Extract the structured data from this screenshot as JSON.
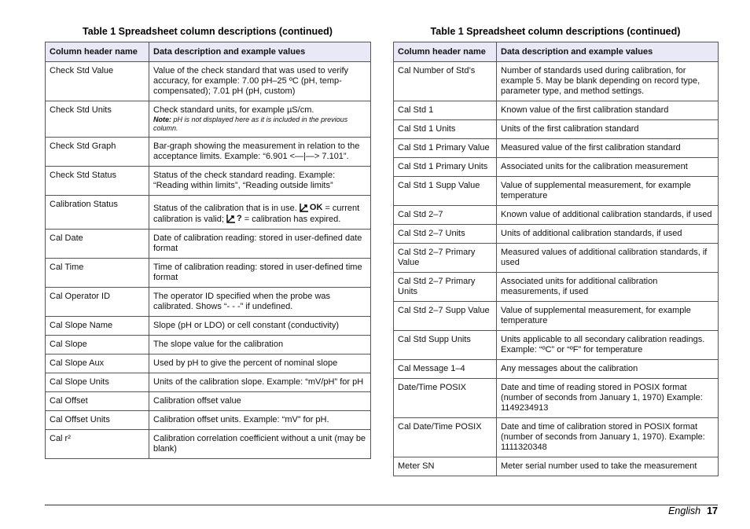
{
  "tables": [
    {
      "title": "Table 1  Spreadsheet column descriptions (continued)",
      "headers": [
        "Column header name",
        "Data description and example values"
      ],
      "rows": [
        [
          "Check Std Value",
          "Value of the check standard that was used to verify accuracy, for example: 7.00 pH–25 ºC (pH, temp-compensated); 7.01 pH (pH, custom)"
        ],
        [
          "Check Std Units",
          {
            "text": "Check standard units, for example µS/cm.",
            "note_label": "Note:",
            "note": "pH is not displayed here as it is included in the previous column."
          }
        ],
        [
          "Check Std Graph",
          "Bar-graph showing the measurement in relation to the acceptance limits. Example: “6.901 <—|—> 7.101”."
        ],
        [
          "Check Std Status",
          "Status of the check standard reading. Example: “Reading within limits”, “Reading outside limits”"
        ],
        [
          "Calibration Status",
          {
            "text": "Status of the calibration that is in use.",
            "ok_icon": "OK",
            "ok_text": "= current calibration is valid;",
            "expired_icon": "?",
            "expired_text": "= calibration has expired."
          }
        ],
        [
          "Cal Date",
          "Date of calibration reading: stored in user-defined date format"
        ],
        [
          "Cal Time",
          "Time of calibration reading: stored in user-defined time format"
        ],
        [
          "Cal Operator ID",
          "The operator ID specified when the probe was calibrated. Shows “- - -” if undefined."
        ],
        [
          "Cal Slope Name",
          "Slope (pH or LDO) or cell constant (conductivity)"
        ],
        [
          "Cal Slope",
          "The slope value for the calibration"
        ],
        [
          "Cal Slope Aux",
          "Used by pH to give the percent of nominal slope"
        ],
        [
          "Cal Slope Units",
          "Units of the calibration slope. Example: “mV/pH” for pH"
        ],
        [
          "Cal Offset",
          "Calibration offset value"
        ],
        [
          "Cal Offset Units",
          "Calibration offset units. Example: “mV” for pH."
        ],
        [
          "Cal r²",
          "Calibration correlation coefficient without a unit (may be blank)"
        ]
      ]
    },
    {
      "title": "Table 1  Spreadsheet column descriptions (continued)",
      "headers": [
        "Column header name",
        "Data description and example values"
      ],
      "rows": [
        [
          "Cal Number of Std’s",
          "Number of standards used during calibration, for example 5. May be blank depending on record type, parameter type, and method settings."
        ],
        [
          "Cal Std 1",
          "Known value of the first calibration standard"
        ],
        [
          "Cal Std 1 Units",
          "Units of the first calibration standard"
        ],
        [
          "Cal Std 1 Primary Value",
          "Measured value of the first calibration standard"
        ],
        [
          "Cal Std 1 Primary Units",
          "Associated units for the calibration measurement"
        ],
        [
          "Cal Std 1 Supp Value",
          "Value of supplemental measurement, for example temperature"
        ],
        [
          "Cal Std 2–7",
          "Known value of additional calibration standards, if used"
        ],
        [
          "Cal Std 2–7 Units",
          "Units of additional calibration standards, if used"
        ],
        [
          "Cal Std 2–7 Primary Value",
          "Measured values of additional calibration standards, if used"
        ],
        [
          "Cal Std 2–7 Primary Units",
          "Associated units for additional calibration measurements, if used"
        ],
        [
          "Cal Std 2–7 Supp Value",
          "Value of supplemental measurement, for example temperature"
        ],
        [
          "Cal Std Supp Units",
          "Units applicable to all secondary calibration readings. Example: “ºC” or “ºF” for temperature"
        ],
        [
          "Cal Message 1–4",
          "Any messages about the calibration"
        ],
        [
          "Date/Time POSIX",
          "Date and time of reading stored in POSIX format (number of seconds from January 1, 1970) Example: 1149234913"
        ],
        [
          "Cal Date/Time POSIX",
          "Date and time of calibration stored in POSIX format (number of seconds from January 1, 1970). Example: 1111320348"
        ],
        [
          "Meter SN",
          "Meter serial number used to take the measurement"
        ]
      ]
    }
  ],
  "footer": {
    "language": "English",
    "page": "17"
  }
}
